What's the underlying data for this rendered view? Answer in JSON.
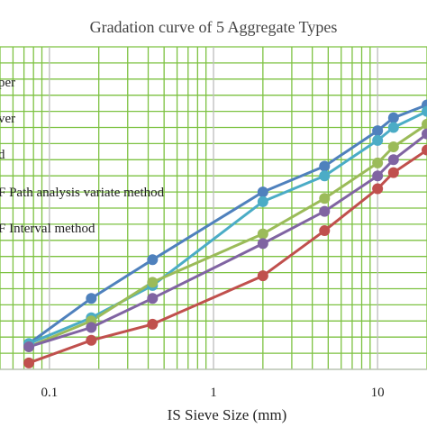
{
  "chart_data": {
    "type": "line",
    "title": "Gradation curve of 5 Aggregate Types",
    "xlabel": "IS Sieve Size (mm)",
    "ylabel": "",
    "x_scale": "log",
    "xlim": [
      0.05,
      20
    ],
    "ylim": [
      0,
      100
    ],
    "grid": true,
    "grid_color": "#7dc242",
    "x_tick_labels": [
      "0.1",
      "1",
      "10"
    ],
    "x_ticks": [
      0.1,
      1,
      10
    ],
    "legend_position": "left",
    "legend_entries": [
      "per",
      "ver",
      "d",
      "F Path analysis variate method",
      "F Interval method"
    ],
    "x": [
      0.075,
      0.18,
      0.425,
      2,
      4.75,
      10,
      12.5,
      20
    ],
    "series": [
      {
        "name": "per",
        "color": "#4f81bd",
        "values": [
          8,
          22,
          34,
          55,
          63,
          74,
          78,
          82
        ]
      },
      {
        "name": "ver",
        "color": "#4bacc6",
        "values": [
          8,
          16,
          26,
          52,
          60,
          71,
          75,
          80
        ]
      },
      {
        "name": "d",
        "color": "#9bbb59",
        "values": [
          7,
          15,
          27,
          42,
          53,
          64,
          69,
          76
        ]
      },
      {
        "name": "F Path analysis variate method",
        "color": "#8064a2",
        "values": [
          7,
          13,
          22,
          39,
          49,
          60,
          65,
          73
        ]
      },
      {
        "name": "F Interval method",
        "color": "#c0504d",
        "values": [
          2,
          9,
          14,
          29,
          43,
          56,
          61,
          68
        ]
      }
    ]
  }
}
